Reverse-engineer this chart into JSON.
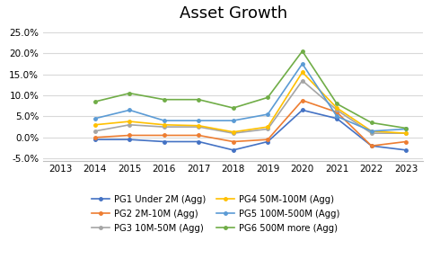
{
  "title": "Asset Growth",
  "years": [
    2013,
    2014,
    2015,
    2016,
    2017,
    2018,
    2019,
    2020,
    2021,
    2022,
    2023
  ],
  "series": [
    {
      "label": "PG1 Under 2M (Agg)",
      "color": "#4472C4",
      "values": [
        null,
        -0.005,
        -0.005,
        -0.01,
        -0.01,
        -0.03,
        -0.01,
        0.065,
        0.045,
        -0.02,
        -0.03
      ]
    },
    {
      "label": "PG2 2M-10M (Agg)",
      "color": "#ED7D31",
      "values": [
        null,
        0.0,
        0.005,
        0.005,
        0.005,
        -0.01,
        -0.005,
        0.088,
        0.06,
        -0.02,
        -0.01
      ]
    },
    {
      "label": "PG3 10M-50M (Agg)",
      "color": "#A5A5A5",
      "values": [
        null,
        0.015,
        0.03,
        0.025,
        0.025,
        0.01,
        0.02,
        0.135,
        0.065,
        0.01,
        0.01
      ]
    },
    {
      "label": "PG4 50M-100M (Agg)",
      "color": "#FFC000",
      "values": [
        null,
        0.03,
        0.038,
        0.03,
        0.028,
        0.013,
        0.025,
        0.155,
        0.07,
        0.015,
        0.01
      ]
    },
    {
      "label": "PG5 100M-500M (Agg)",
      "color": "#5B9BD5",
      "values": [
        null,
        0.045,
        0.065,
        0.04,
        0.04,
        0.04,
        0.055,
        0.175,
        0.05,
        0.015,
        0.02
      ]
    },
    {
      "label": "PG6 500M more (Agg)",
      "color": "#70AD47",
      "values": [
        null,
        0.085,
        0.105,
        0.09,
        0.09,
        0.07,
        0.095,
        0.205,
        0.08,
        0.035,
        0.022
      ]
    }
  ],
  "ylim": [
    -0.055,
    0.265
  ],
  "yticks": [
    -0.05,
    0.0,
    0.05,
    0.1,
    0.15,
    0.2,
    0.25
  ],
  "xlim": [
    2012.5,
    2023.5
  ],
  "background_color": "#FFFFFF",
  "grid_color": "#D9D9D9",
  "title_fontsize": 13,
  "legend_fontsize": 7.2,
  "tick_fontsize": 7.5
}
